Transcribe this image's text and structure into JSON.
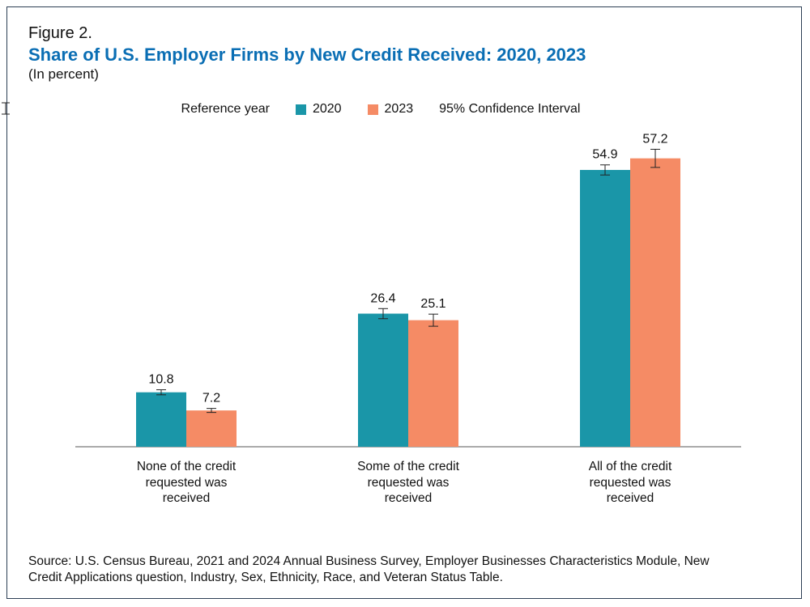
{
  "chart_data": {
    "type": "bar",
    "figure_label": "Figure 2.",
    "title": "Share of U.S. Employer Firms by New Credit Received: 2020, 2023",
    "subtitle": "(In percent)",
    "legend_title": "Reference year",
    "ci_label": "95% Confidence Interval",
    "categories": [
      "None of the credit requested was received",
      "Some of the credit requested was received",
      "All of the credit requested was received"
    ],
    "series": [
      {
        "name": "2020",
        "color": "#1a96a8",
        "values": [
          10.8,
          26.4,
          54.9
        ],
        "errors": [
          0.5,
          1.0,
          1.0
        ]
      },
      {
        "name": "2023",
        "color": "#f58b65",
        "values": [
          7.2,
          25.1,
          57.2
        ],
        "errors": [
          0.4,
          1.2,
          1.8
        ]
      }
    ],
    "source": "Source: U.S. Census Bureau, 2021 and 2024 Annual Business Survey, Employer Businesses Characteristics Module, New Credit Applications question, Industry, Sex, Ethnicity, Race, and Veteran Status Table."
  }
}
